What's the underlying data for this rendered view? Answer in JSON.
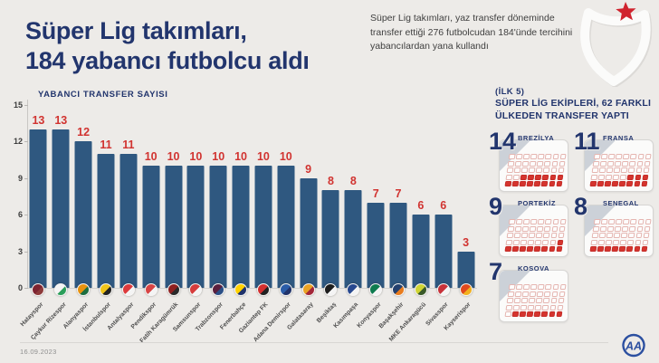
{
  "header": {
    "title_line1": "Süper Lig takımları,",
    "title_line2": "184 yabancı futbolcu aldı",
    "subtitle": "Süper Lig takımları, yaz transfer döneminde transfer ettiği 276 futbolcudan 184'ünde tercihini yabancılardan yana kullandı",
    "logo_icon": "super-lig-crest",
    "logo_star_color": "#d0232e"
  },
  "chart_data": [
    {
      "type": "bar",
      "title": "YABANCI TRANSFER SAYISI",
      "categories": [
        "Hatayspor",
        "Çaykur Rizespor",
        "Alanyaspor",
        "İstanbulspor",
        "Antalyaspor",
        "Pendikspor",
        "Fatih Karagümrük",
        "Samsunspor",
        "Trabzonspor",
        "Fenerbahçe",
        "Gaziantep FK",
        "Adana Demirspor",
        "Galatasaray",
        "Beşiktaş",
        "Kasımpaşa",
        "Konyaspor",
        "Başakşehir",
        "MKE Ankaragücü",
        "Sivasspor",
        "Kayserispor"
      ],
      "values": [
        13,
        13,
        12,
        11,
        11,
        10,
        10,
        10,
        10,
        10,
        10,
        10,
        9,
        8,
        8,
        7,
        7,
        6,
        6,
        3
      ],
      "total": 184,
      "xlabel": "",
      "ylabel": "YABANCI TRANSFER SAYISI",
      "ylim": [
        0,
        15
      ],
      "yticks": [
        0,
        3,
        6,
        9,
        12,
        15
      ],
      "grid": "off",
      "bar_color": "#2f5880",
      "value_label_color": "#d13330",
      "team_crest_colors": [
        [
          "#7d2330",
          "#8d3a3a"
        ],
        [
          "#f4f4f4",
          "#2b9e5a"
        ],
        [
          "#e8920e",
          "#1e6e40"
        ],
        [
          "#f0c419",
          "#222222"
        ],
        [
          "#dd3a3c",
          "#f4f4f4"
        ],
        [
          "#d84444",
          "#f4f4f4"
        ],
        [
          "#8f2020",
          "#2a2a2a"
        ],
        [
          "#d63c3c",
          "#f4f4f4"
        ],
        [
          "#5a1f3d",
          "#2b4f86"
        ],
        [
          "#ffd100",
          "#20336b"
        ],
        [
          "#d32f2f",
          "#222222"
        ],
        [
          "#2a5ca8",
          "#20336b"
        ],
        [
          "#e9a224",
          "#a32638"
        ],
        [
          "#1d1d1d",
          "#f4f4f4"
        ],
        [
          "#27488f",
          "#f4f4f4"
        ],
        [
          "#0e7b4f",
          "#f4f4f4"
        ],
        [
          "#23406e",
          "#e87c1e"
        ],
        [
          "#cfd435",
          "#3a5a28"
        ],
        [
          "#c8323a",
          "#f4f4f4"
        ],
        [
          "#e04a1e",
          "#f2b11e"
        ]
      ]
    },
    {
      "type": "waffle",
      "kicker": "(İLK 5)",
      "title": "SÜPER LİG EKİPLERİ, 62 FARKLI ÜLKEDEN TRANSFER YAPTI",
      "items": [
        {
          "country": "BREZİLYA",
          "value": 14
        },
        {
          "country": "FRANSA",
          "value": 11
        },
        {
          "country": "PORTEKİZ",
          "value": 9
        },
        {
          "country": "SENEGAL",
          "value": 8
        },
        {
          "country": "KOSOVA",
          "value": 7
        }
      ],
      "grid_columns": 8,
      "grid_rows": 5,
      "filled_color": "#d5342e",
      "number_color": "#22356d"
    }
  ],
  "footer": {
    "date": "16.09.2023",
    "agency_logo": "AA",
    "agency_logo_color": "#2b4fa0"
  }
}
